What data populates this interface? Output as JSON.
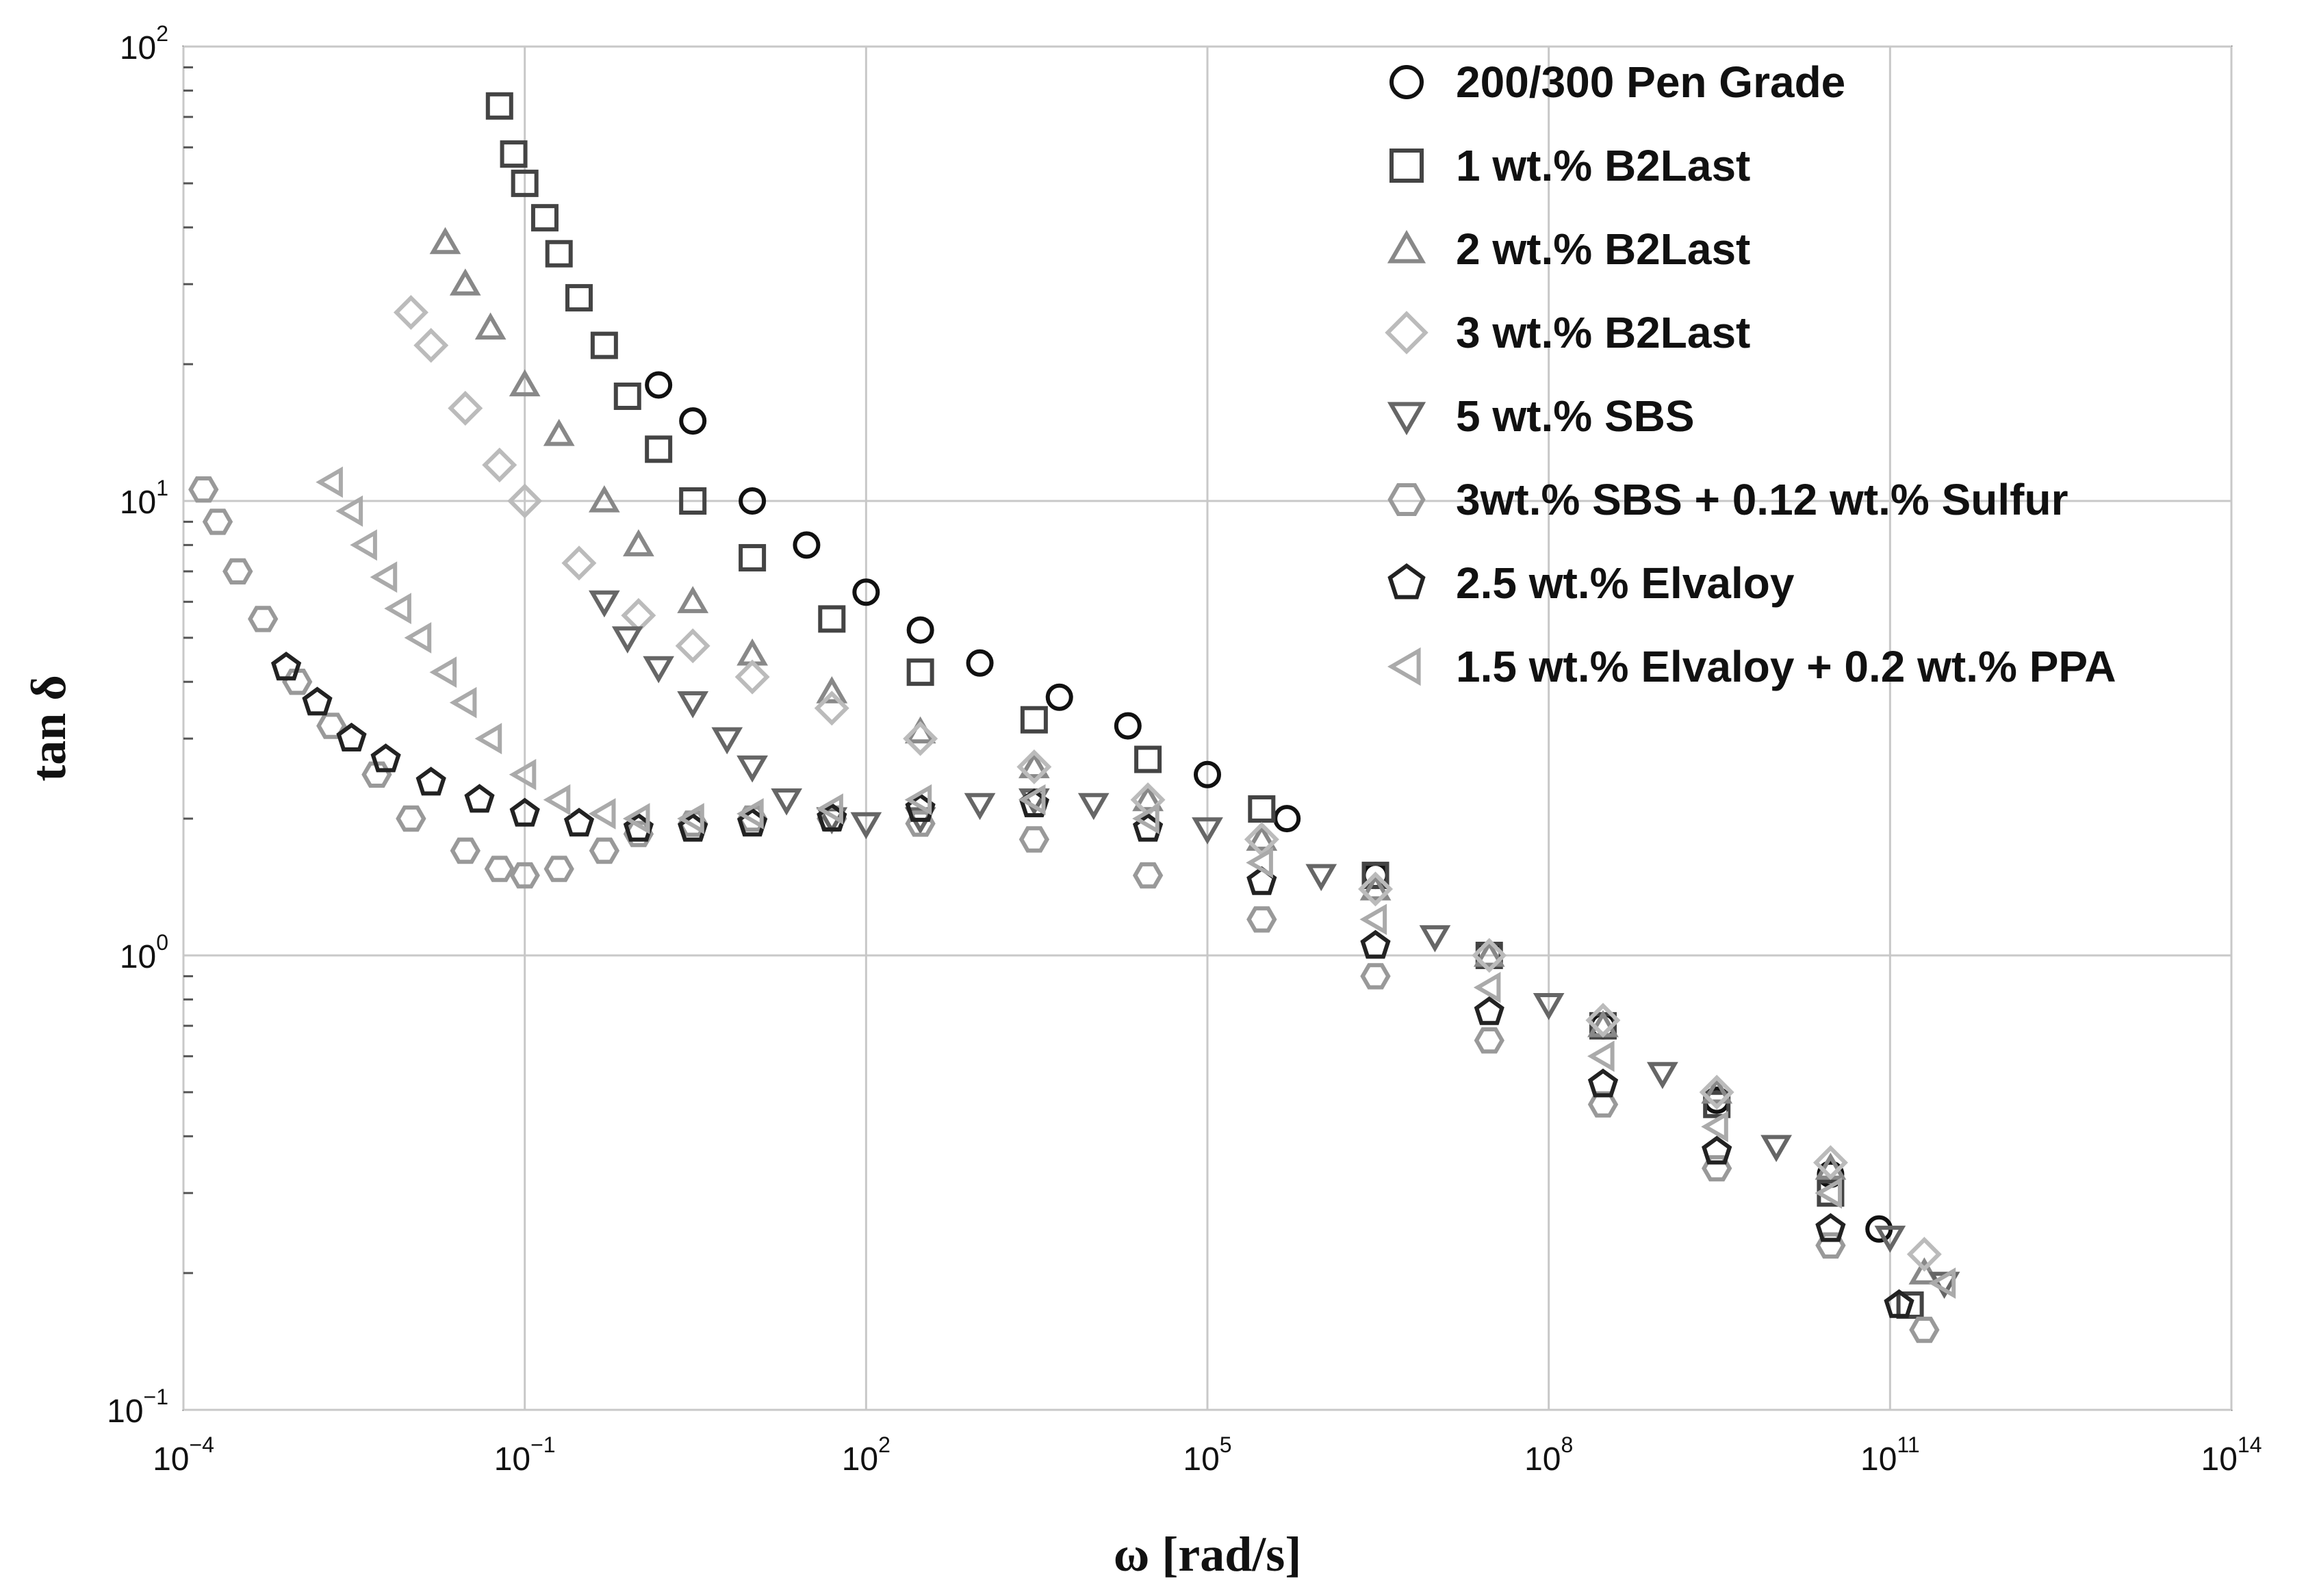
{
  "chart_data": {
    "type": "scatter",
    "title": "",
    "xlabel": "ω [rad/s]",
    "ylabel": "tan δ",
    "xscale": "log",
    "yscale": "log",
    "xlim": [
      0.0001,
      100000000000000.0
    ],
    "ylim": [
      0.1,
      100
    ],
    "grid": true,
    "legend_position": "top-right",
    "x_ticks": [
      {
        "base": "10",
        "exp": "−4",
        "value": 0.0001
      },
      {
        "base": "10",
        "exp": "−1",
        "value": 0.1
      },
      {
        "base": "10",
        "exp": "2",
        "value": 100
      },
      {
        "base": "10",
        "exp": "5",
        "value": 100000
      },
      {
        "base": "10",
        "exp": "8",
        "value": 100000000
      },
      {
        "base": "10",
        "exp": "11",
        "value": 100000000000.0
      },
      {
        "base": "10",
        "exp": "14",
        "value": 100000000000000.0
      }
    ],
    "y_ticks": [
      {
        "base": "10",
        "exp": "−1",
        "value": 0.1
      },
      {
        "base": "10",
        "exp": "0",
        "value": 1
      },
      {
        "base": "10",
        "exp": "1",
        "value": 10
      },
      {
        "base": "10",
        "exp": "2",
        "value": 100
      }
    ],
    "series": [
      {
        "name": "200/300 Pen Grade",
        "marker": "circle",
        "color": "#111111",
        "x": [
          1.5,
          3,
          10,
          30,
          100,
          300,
          1000,
          5000,
          20000,
          100000,
          500000,
          3000000,
          30000000,
          300000000,
          3000000000,
          30000000000,
          80000000000
        ],
        "y": [
          18,
          15,
          10,
          8,
          6.3,
          5.2,
          4.4,
          3.7,
          3.2,
          2.5,
          2.0,
          1.5,
          1.0,
          0.7,
          0.48,
          0.33,
          0.25
        ]
      },
      {
        "name": "1 wt.% B2Last",
        "marker": "square",
        "color": "#444444",
        "x": [
          0.06,
          0.08,
          0.1,
          0.15,
          0.2,
          0.3,
          0.5,
          0.8,
          1.5,
          3,
          10,
          50,
          300,
          3000,
          30000,
          300000,
          3000000,
          30000000,
          300000000,
          3000000000,
          30000000000,
          150000000000
        ],
        "y": [
          74,
          58,
          50,
          42,
          35,
          28,
          22,
          17,
          13,
          10,
          7.5,
          5.5,
          4.2,
          3.3,
          2.7,
          2.1,
          1.5,
          1.0,
          0.7,
          0.47,
          0.3,
          0.17
        ]
      },
      {
        "name": "2 wt.% B2Last",
        "marker": "triangle-up",
        "color": "#888888",
        "x": [
          0.02,
          0.03,
          0.05,
          0.1,
          0.2,
          0.5,
          1,
          3,
          10,
          50,
          300,
          3000,
          30000,
          300000,
          3000000,
          30000000,
          300000000,
          3000000000,
          30000000000,
          200000000000
        ],
        "y": [
          37,
          30,
          24,
          18,
          14,
          10,
          8,
          6,
          4.6,
          3.8,
          3.1,
          2.6,
          2.2,
          1.8,
          1.4,
          1.0,
          0.7,
          0.5,
          0.34,
          0.2
        ]
      },
      {
        "name": "3 wt.% B2Last",
        "marker": "diamond",
        "color": "#bbbbbb",
        "x": [
          0.01,
          0.015,
          0.03,
          0.06,
          0.1,
          0.3,
          1,
          3,
          10,
          50,
          300,
          3000,
          30000,
          300000,
          3000000,
          30000000,
          300000000,
          3000000000,
          30000000000,
          200000000000
        ],
        "y": [
          26,
          22,
          16,
          12,
          10,
          7.3,
          5.6,
          4.8,
          4.1,
          3.5,
          3.0,
          2.6,
          2.2,
          1.8,
          1.4,
          1.0,
          0.72,
          0.5,
          0.35,
          0.22
        ]
      },
      {
        "name": "5 wt.% SBS",
        "marker": "triangle-down",
        "color": "#666666",
        "x": [
          0.5,
          0.8,
          1.5,
          3,
          6,
          10,
          20,
          50,
          100,
          300,
          1000,
          3000,
          10000,
          100000,
          1000000,
          10000000,
          100000000,
          1000000000,
          10000000000,
          100000000000,
          300000000000
        ],
        "y": [
          6,
          5,
          4.3,
          3.6,
          3,
          2.6,
          2.2,
          2.0,
          1.95,
          2.0,
          2.15,
          2.2,
          2.15,
          1.9,
          1.5,
          1.1,
          0.78,
          0.55,
          0.38,
          0.24,
          0.19
        ]
      },
      {
        "name": "3wt.% SBS + 0.12 wt.% Sulfur",
        "marker": "hexagon",
        "color": "#999999",
        "x": [
          0.00015,
          0.0002,
          0.0003,
          0.0005,
          0.001,
          0.002,
          0.005,
          0.01,
          0.03,
          0.06,
          0.1,
          0.2,
          0.5,
          1,
          3,
          10,
          50,
          300,
          3000,
          30000,
          300000,
          3000000,
          30000000,
          300000000,
          3000000000,
          30000000000,
          200000000000
        ],
        "y": [
          10.6,
          9,
          7,
          5.5,
          4,
          3.2,
          2.5,
          2.0,
          1.7,
          1.55,
          1.5,
          1.55,
          1.7,
          1.85,
          1.95,
          2.0,
          2.0,
          1.95,
          1.8,
          1.5,
          1.2,
          0.9,
          0.65,
          0.47,
          0.34,
          0.23,
          0.15
        ]
      },
      {
        "name": "2.5 wt.% Elvaloy",
        "marker": "pentagon",
        "color": "#222222",
        "x": [
          0.0008,
          0.0015,
          0.003,
          0.006,
          0.015,
          0.04,
          0.1,
          0.3,
          1,
          3,
          10,
          50,
          300,
          3000,
          30000,
          300000,
          3000000,
          30000000,
          300000000,
          3000000000,
          30000000000,
          120000000000
        ],
        "y": [
          4.3,
          3.6,
          3.0,
          2.7,
          2.4,
          2.2,
          2.05,
          1.95,
          1.9,
          1.9,
          1.95,
          2.0,
          2.1,
          2.15,
          1.9,
          1.45,
          1.05,
          0.75,
          0.52,
          0.37,
          0.25,
          0.17
        ]
      },
      {
        "name": "1.5 wt.% Elvaloy + 0.2 wt.% PPA",
        "marker": "triangle-left",
        "color": "#aaaaaa",
        "x": [
          0.002,
          0.003,
          0.004,
          0.006,
          0.008,
          0.012,
          0.02,
          0.03,
          0.05,
          0.1,
          0.2,
          0.5,
          1,
          3,
          10,
          50,
          300,
          3000,
          30000,
          300000,
          3000000,
          30000000,
          300000000,
          3000000000,
          30000000000,
          300000000000
        ],
        "y": [
          11,
          9.5,
          8,
          6.8,
          5.8,
          5,
          4.2,
          3.6,
          3.0,
          2.5,
          2.2,
          2.05,
          2.0,
          2.0,
          2.05,
          2.1,
          2.2,
          2.2,
          2.0,
          1.6,
          1.2,
          0.85,
          0.6,
          0.42,
          0.3,
          0.19
        ]
      }
    ]
  }
}
